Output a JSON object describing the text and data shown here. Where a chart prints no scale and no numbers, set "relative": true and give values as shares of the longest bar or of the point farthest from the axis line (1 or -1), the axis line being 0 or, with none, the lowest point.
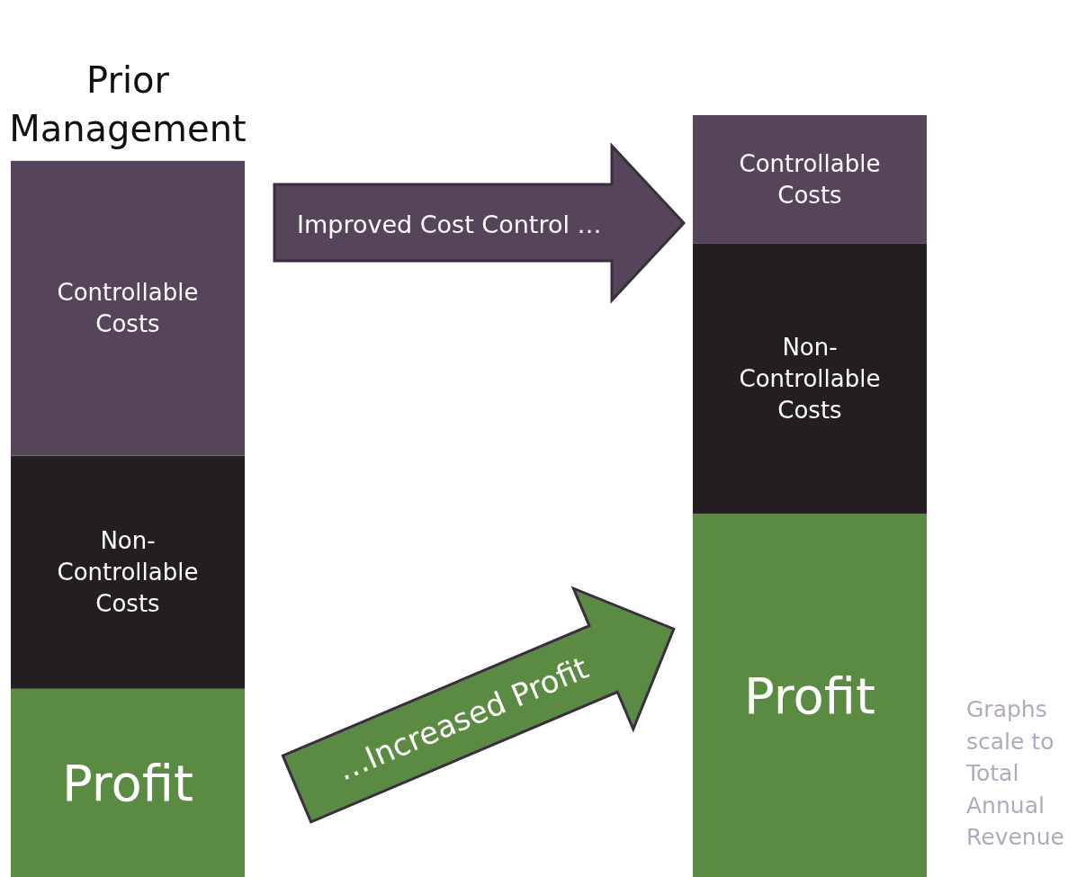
{
  "chart_data": {
    "type": "bar",
    "stacked": true,
    "relative": true,
    "categories": [
      "Prior Management",
      null
    ],
    "series": [
      {
        "name": "Profit",
        "color": "#5b8a43",
        "values": [
          0.247,
          0.477
        ]
      },
      {
        "name": "Non-Controllable Costs",
        "color": "#231f20",
        "values": [
          0.306,
          0.355
        ]
      },
      {
        "name": "Controllable Costs",
        "color": "#55445a",
        "values": [
          0.387,
          0.168
        ]
      }
    ],
    "annotations": [
      "Improved Cost Control …",
      "…Increased Profit",
      "Graphs scale to Total Annual Revenue"
    ]
  }
}
